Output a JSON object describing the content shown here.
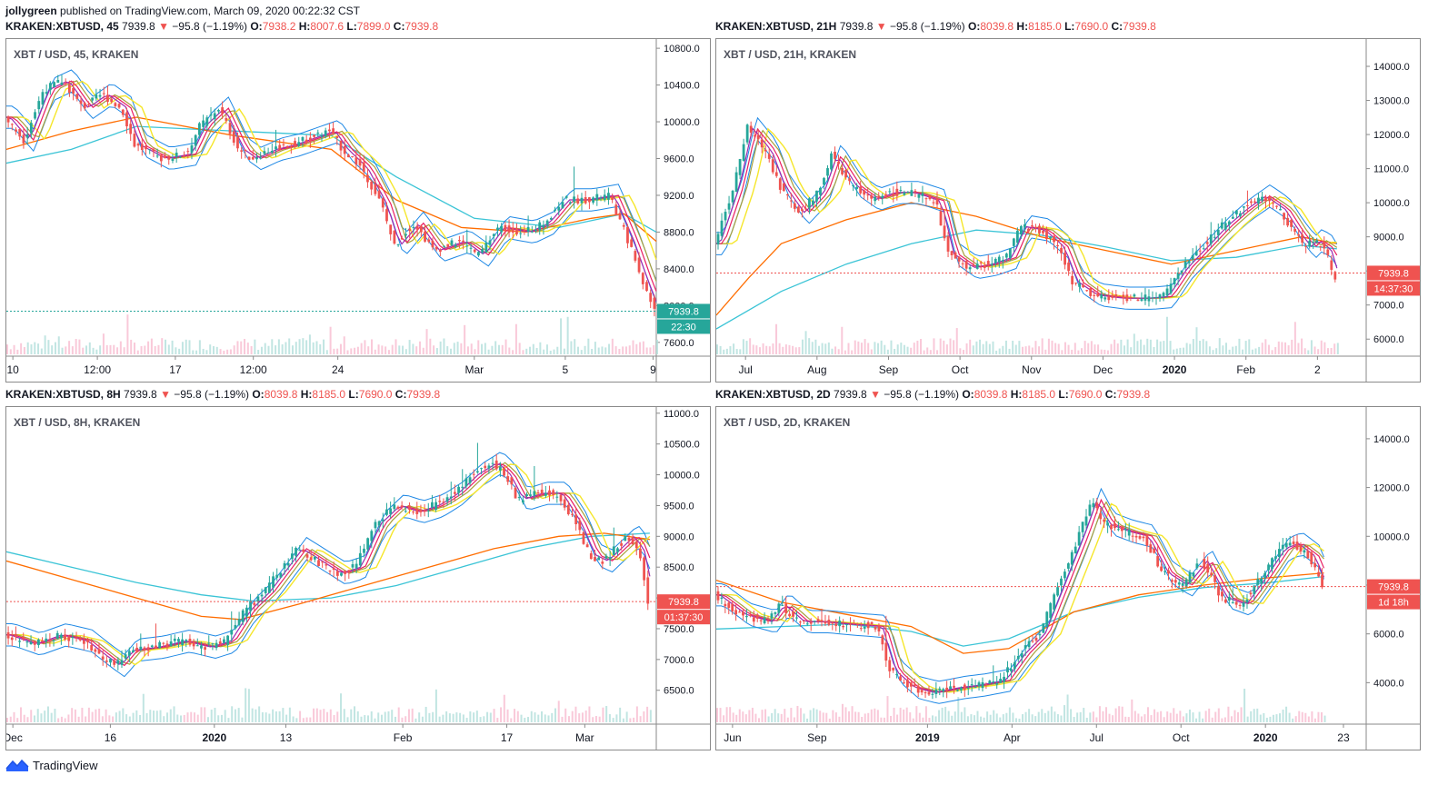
{
  "header": {
    "author": "jollygreen",
    "published": "published on TradingView.com, March 09, 2020 00:22:32 CST"
  },
  "footer": {
    "brand": "TradingView"
  },
  "colors": {
    "up": "#26a69a",
    "down": "#ef5350",
    "band": "#1e88e5",
    "cyan": "#3bc4d6",
    "orange": "#ff6d00",
    "yellow": "#f5e62b",
    "purple": "#9c27b0",
    "pink": "#e91e63",
    "olive": "#a8a03c",
    "last_green": "#26a69a",
    "last_red": "#ef5350"
  },
  "chart_data": [
    {
      "type": "line",
      "symbol": "KRAKEN:XBTUSD, 45",
      "ohlc": {
        "price": "7939.8",
        "change": "−95.8 (−1.19%)",
        "o": "7938.2",
        "h": "8007.6",
        "l": "7899.0",
        "c": "7939.8"
      },
      "legend": "XBT / USD, 45, KRAKEN",
      "ylim": [
        7450,
        10900
      ],
      "y_ticks": [
        "10800.0",
        "10400.0",
        "10000.0",
        "9600.0",
        "9200.0",
        "8800.0",
        "8400.0",
        "8000.0",
        "7600.0"
      ],
      "y_tick_values": [
        10800,
        10400,
        10000,
        9600,
        9200,
        8800,
        8400,
        8000,
        7600
      ],
      "x_ticks": [
        "10",
        "12:00",
        "17",
        "12:00",
        "24",
        "Mar",
        "5",
        "9"
      ],
      "x_tick_positions": [
        0.01,
        0.14,
        0.26,
        0.38,
        0.51,
        0.72,
        0.86,
        0.995
      ],
      "last": {
        "price": "7939.8",
        "price_value": 7939.8,
        "timer": "22:30",
        "line_color": "#26a69a"
      },
      "price_path": [
        [
          0,
          10050
        ],
        [
          0.03,
          9800
        ],
        [
          0.06,
          10350
        ],
        [
          0.09,
          10450
        ],
        [
          0.12,
          10150
        ],
        [
          0.15,
          10300
        ],
        [
          0.18,
          10150
        ],
        [
          0.2,
          9750
        ],
        [
          0.24,
          9600
        ],
        [
          0.28,
          9650
        ],
        [
          0.3,
          9950
        ],
        [
          0.33,
          10150
        ],
        [
          0.36,
          9700
        ],
        [
          0.38,
          9600
        ],
        [
          0.41,
          9700
        ],
        [
          0.44,
          9750
        ],
        [
          0.48,
          9850
        ],
        [
          0.5,
          9900
        ],
        [
          0.52,
          9700
        ],
        [
          0.55,
          9500
        ],
        [
          0.58,
          9100
        ],
        [
          0.6,
          8650
        ],
        [
          0.63,
          8900
        ],
        [
          0.66,
          8600
        ],
        [
          0.7,
          8700
        ],
        [
          0.73,
          8550
        ],
        [
          0.76,
          8850
        ],
        [
          0.8,
          8800
        ],
        [
          0.83,
          8900
        ],
        [
          0.86,
          9150
        ],
        [
          0.89,
          9150
        ],
        [
          0.93,
          9200
        ],
        [
          0.96,
          8700
        ],
        [
          0.98,
          8300
        ],
        [
          1.0,
          7940
        ]
      ],
      "ma_cyan": [
        [
          0,
          9550
        ],
        [
          0.1,
          9700
        ],
        [
          0.2,
          9950
        ],
        [
          0.35,
          9900
        ],
        [
          0.5,
          9850
        ],
        [
          0.6,
          9400
        ],
        [
          0.72,
          8950
        ],
        [
          0.85,
          8850
        ],
        [
          0.95,
          9000
        ],
        [
          1.0,
          8800
        ]
      ],
      "ma_orange": [
        [
          0,
          9700
        ],
        [
          0.1,
          9900
        ],
        [
          0.2,
          10050
        ],
        [
          0.35,
          9850
        ],
        [
          0.5,
          9700
        ],
        [
          0.6,
          9150
        ],
        [
          0.7,
          8850
        ],
        [
          0.8,
          8800
        ],
        [
          0.9,
          8950
        ],
        [
          0.95,
          9000
        ],
        [
          1.0,
          8700
        ]
      ]
    },
    {
      "type": "line",
      "symbol": "KRAKEN:XBTUSD, 21H",
      "ohlc": {
        "price": "7939.8",
        "change": "−95.8 (−1.19%)",
        "o": "8039.8",
        "h": "8185.0",
        "l": "7690.0",
        "c": "7939.8"
      },
      "legend": "XBT / USD, 21H, KRAKEN",
      "ylim": [
        5500,
        14800
      ],
      "y_ticks": [
        "14000.0",
        "13000.0",
        "12000.0",
        "11000.0",
        "10000.0",
        "9000.0",
        "8000.0",
        "7000.0",
        "6000.0"
      ],
      "y_tick_values": [
        14000,
        13000,
        12000,
        11000,
        10000,
        9000,
        8000,
        7000,
        6000
      ],
      "x_ticks": [
        "Jul",
        "Aug",
        "Sep",
        "Oct",
        "Nov",
        "Dec",
        "2020",
        "Feb",
        "2"
      ],
      "x_tick_positions": [
        0.045,
        0.155,
        0.265,
        0.375,
        0.485,
        0.595,
        0.705,
        0.815,
        0.925
      ],
      "last": {
        "price": "7939.8",
        "price_value": 7939.8,
        "timer": "14:37:30",
        "line_color": "#ef5350"
      },
      "price_path": [
        [
          0,
          8800
        ],
        [
          0.03,
          10500
        ],
        [
          0.05,
          12200
        ],
        [
          0.08,
          11500
        ],
        [
          0.1,
          10500
        ],
        [
          0.13,
          9700
        ],
        [
          0.16,
          10300
        ],
        [
          0.18,
          11400
        ],
        [
          0.21,
          10500
        ],
        [
          0.24,
          10100
        ],
        [
          0.27,
          10300
        ],
        [
          0.3,
          10300
        ],
        [
          0.34,
          10050
        ],
        [
          0.36,
          8500
        ],
        [
          0.39,
          8100
        ],
        [
          0.42,
          8200
        ],
        [
          0.45,
          8400
        ],
        [
          0.47,
          9300
        ],
        [
          0.5,
          9200
        ],
        [
          0.53,
          8700
        ],
        [
          0.55,
          7700
        ],
        [
          0.58,
          7300
        ],
        [
          0.62,
          7200
        ],
        [
          0.66,
          7200
        ],
        [
          0.69,
          7250
        ],
        [
          0.72,
          8100
        ],
        [
          0.75,
          8700
        ],
        [
          0.78,
          9300
        ],
        [
          0.81,
          9800
        ],
        [
          0.84,
          10200
        ],
        [
          0.87,
          9800
        ],
        [
          0.89,
          9200
        ],
        [
          0.91,
          8700
        ],
        [
          0.92,
          8900
        ],
        [
          0.94,
          8650
        ],
        [
          0.955,
          7700
        ]
      ],
      "ma_cyan": [
        [
          0,
          6300
        ],
        [
          0.1,
          7400
        ],
        [
          0.2,
          8200
        ],
        [
          0.3,
          8800
        ],
        [
          0.4,
          9200
        ],
        [
          0.5,
          9050
        ],
        [
          0.6,
          8700
        ],
        [
          0.7,
          8300
        ],
        [
          0.8,
          8400
        ],
        [
          0.9,
          8750
        ],
        [
          0.955,
          8650
        ]
      ],
      "ma_orange": [
        [
          0,
          6700
        ],
        [
          0.05,
          7800
        ],
        [
          0.1,
          8800
        ],
        [
          0.2,
          9500
        ],
        [
          0.3,
          10000
        ],
        [
          0.4,
          9600
        ],
        [
          0.5,
          9000
        ],
        [
          0.6,
          8600
        ],
        [
          0.7,
          8200
        ],
        [
          0.8,
          8600
        ],
        [
          0.9,
          9000
        ],
        [
          0.955,
          8800
        ]
      ]
    },
    {
      "type": "line",
      "symbol": "KRAKEN:XBTUSD, 8H",
      "ohlc": {
        "price": "7939.8",
        "change": "−95.8 (−1.19%)",
        "o": "8039.8",
        "h": "8185.0",
        "l": "7690.0",
        "c": "7939.8"
      },
      "legend": "XBT / USD, 8H, KRAKEN",
      "ylim": [
        5950,
        11100
      ],
      "y_ticks": [
        "11000.0",
        "10500.0",
        "10000.0",
        "9500.0",
        "9000.0",
        "8500.0",
        "8000.0",
        "7500.0",
        "7000.0",
        "6500.0"
      ],
      "y_tick_values": [
        11000,
        10500,
        10000,
        9500,
        9000,
        8500,
        8000,
        7500,
        7000,
        6500
      ],
      "x_ticks": [
        "Dec",
        "16",
        "2020",
        "13",
        "Feb",
        "17",
        "Mar"
      ],
      "x_tick_positions": [
        0.01,
        0.16,
        0.32,
        0.43,
        0.61,
        0.77,
        0.89
      ],
      "last": {
        "price": "7939.8",
        "price_value": 7939.8,
        "timer": "01:37:30",
        "line_color": "#ef5350"
      },
      "price_path": [
        [
          0,
          7400
        ],
        [
          0.04,
          7250
        ],
        [
          0.08,
          7400
        ],
        [
          0.12,
          7300
        ],
        [
          0.15,
          7050
        ],
        [
          0.17,
          6900
        ],
        [
          0.19,
          7150
        ],
        [
          0.23,
          7200
        ],
        [
          0.27,
          7300
        ],
        [
          0.31,
          7200
        ],
        [
          0.34,
          7300
        ],
        [
          0.37,
          7800
        ],
        [
          0.4,
          8100
        ],
        [
          0.45,
          8800
        ],
        [
          0.48,
          8600
        ],
        [
          0.51,
          8400
        ],
        [
          0.54,
          8500
        ],
        [
          0.57,
          9200
        ],
        [
          0.6,
          9500
        ],
        [
          0.63,
          9400
        ],
        [
          0.66,
          9500
        ],
        [
          0.69,
          9700
        ],
        [
          0.72,
          10000
        ],
        [
          0.75,
          10200
        ],
        [
          0.77,
          10000
        ],
        [
          0.79,
          9600
        ],
        [
          0.82,
          9700
        ],
        [
          0.85,
          9700
        ],
        [
          0.88,
          9200
        ],
        [
          0.9,
          8700
        ],
        [
          0.92,
          8600
        ],
        [
          0.94,
          8800
        ],
        [
          0.96,
          9000
        ],
        [
          0.975,
          8800
        ],
        [
          0.985,
          8300
        ],
        [
          0.99,
          7940
        ]
      ],
      "ma_cyan": [
        [
          0,
          8750
        ],
        [
          0.1,
          8500
        ],
        [
          0.2,
          8250
        ],
        [
          0.3,
          8050
        ],
        [
          0.38,
          7950
        ],
        [
          0.5,
          8000
        ],
        [
          0.6,
          8200
        ],
        [
          0.7,
          8500
        ],
        [
          0.8,
          8800
        ],
        [
          0.9,
          9000
        ],
        [
          0.99,
          9050
        ]
      ],
      "ma_orange": [
        [
          0,
          8600
        ],
        [
          0.1,
          8300
        ],
        [
          0.2,
          8000
        ],
        [
          0.3,
          7700
        ],
        [
          0.36,
          7650
        ],
        [
          0.45,
          7900
        ],
        [
          0.55,
          8200
        ],
        [
          0.65,
          8500
        ],
        [
          0.75,
          8800
        ],
        [
          0.85,
          9000
        ],
        [
          0.92,
          9050
        ],
        [
          0.99,
          8950
        ]
      ]
    },
    {
      "type": "line",
      "symbol": "KRAKEN:XBTUSD, 2D",
      "ohlc": {
        "price": "7939.8",
        "change": "−95.8 (−1.19%)",
        "o": "8039.8",
        "h": "8185.0",
        "l": "7690.0",
        "c": "7939.8"
      },
      "legend": "XBT / USD, 2D, KRAKEN",
      "ylim": [
        2300,
        15300
      ],
      "y_ticks": [
        "14000.0",
        "12000.0",
        "10000.0",
        "8000.0",
        "6000.0",
        "4000.0"
      ],
      "y_tick_values": [
        14000,
        12000,
        10000,
        8000,
        6000,
        4000
      ],
      "x_ticks": [
        "Jun",
        "Sep",
        "2019",
        "Apr",
        "Jul",
        "Oct",
        "2020",
        "23"
      ],
      "x_tick_positions": [
        0.025,
        0.155,
        0.325,
        0.455,
        0.585,
        0.715,
        0.845,
        0.965
      ],
      "last": {
        "price": "7939.8",
        "price_value": 7939.8,
        "timer": "1d 18h",
        "line_color": "#ef5350"
      },
      "price_path": [
        [
          0,
          7600
        ],
        [
          0.04,
          6800
        ],
        [
          0.08,
          6500
        ],
        [
          0.1,
          7200
        ],
        [
          0.13,
          6500
        ],
        [
          0.16,
          6500
        ],
        [
          0.2,
          6400
        ],
        [
          0.25,
          6300
        ],
        [
          0.27,
          4500
        ],
        [
          0.3,
          3800
        ],
        [
          0.33,
          3600
        ],
        [
          0.37,
          3800
        ],
        [
          0.4,
          3900
        ],
        [
          0.44,
          4100
        ],
        [
          0.47,
          5200
        ],
        [
          0.5,
          6000
        ],
        [
          0.53,
          8000
        ],
        [
          0.56,
          10000
        ],
        [
          0.58,
          11500
        ],
        [
          0.6,
          10500
        ],
        [
          0.63,
          10200
        ],
        [
          0.66,
          10000
        ],
        [
          0.69,
          8500
        ],
        [
          0.72,
          8000
        ],
        [
          0.75,
          9000
        ],
        [
          0.78,
          7500
        ],
        [
          0.81,
          7200
        ],
        [
          0.84,
          8300
        ],
        [
          0.87,
          9500
        ],
        [
          0.89,
          9700
        ],
        [
          0.915,
          9200
        ],
        [
          0.935,
          7940
        ]
      ],
      "ma_cyan": [
        [
          0,
          6200
        ],
        [
          0.1,
          6300
        ],
        [
          0.2,
          6400
        ],
        [
          0.3,
          6100
        ],
        [
          0.38,
          5500
        ],
        [
          0.45,
          5800
        ],
        [
          0.55,
          6900
        ],
        [
          0.65,
          7500
        ],
        [
          0.75,
          7900
        ],
        [
          0.85,
          8100
        ],
        [
          0.935,
          8350
        ]
      ],
      "ma_orange": [
        [
          0,
          8200
        ],
        [
          0.1,
          7300
        ],
        [
          0.2,
          6800
        ],
        [
          0.3,
          6300
        ],
        [
          0.38,
          5200
        ],
        [
          0.45,
          5400
        ],
        [
          0.55,
          6900
        ],
        [
          0.65,
          7600
        ],
        [
          0.75,
          8000
        ],
        [
          0.85,
          8300
        ],
        [
          0.935,
          8500
        ]
      ]
    }
  ]
}
